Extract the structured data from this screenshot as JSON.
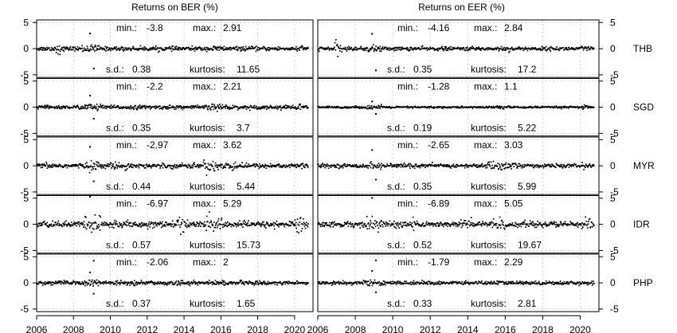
{
  "chart_data": {
    "type": "scatter",
    "columns": [
      "Returns on BER (%)",
      "Returns on EER (%)"
    ],
    "x_ticks": [
      "2006",
      "2008",
      "2010",
      "2012",
      "2014",
      "2016",
      "2018",
      "2020"
    ],
    "xlim": [
      2006,
      2021
    ],
    "ylim": [
      -5.5,
      5.5
    ],
    "y_ticks": [
      "5",
      "0",
      "-5"
    ],
    "grid": true,
    "stat_labels": {
      "min": "min.:",
      "max": "max.:",
      "sd": "s.d.:",
      "kurtosis": "kurtosis:"
    },
    "panels": [
      {
        "currency": "THB",
        "ber": {
          "min": "-3.8",
          "max": "2.91",
          "sd": "0.38",
          "kurtosis": "11.65"
        },
        "eer": {
          "min": "-4.16",
          "max": "2.84",
          "sd": "0.35",
          "kurtosis": "17.2"
        }
      },
      {
        "currency": "SGD",
        "ber": {
          "min": "-2.2",
          "max": "2.21",
          "sd": "0.35",
          "kurtosis": "3.7"
        },
        "eer": {
          "min": "-1.28",
          "max": "1.1",
          "sd": "0.19",
          "kurtosis": "5.22"
        }
      },
      {
        "currency": "MYR",
        "ber": {
          "min": "-2.97",
          "max": "3.62",
          "sd": "0.44",
          "kurtosis": "5.44"
        },
        "eer": {
          "min": "-2.65",
          "max": "3.03",
          "sd": "0.35",
          "kurtosis": "5.99"
        }
      },
      {
        "currency": "IDR",
        "ber": {
          "min": "-6.97",
          "max": "5.29",
          "sd": "0.57",
          "kurtosis": "15.73"
        },
        "eer": {
          "min": "-6.89",
          "max": "5.05",
          "sd": "0.52",
          "kurtosis": "19.67"
        }
      },
      {
        "currency": "PHP",
        "ber": {
          "min": "-2.06",
          "max": "2",
          "sd": "0.37",
          "kurtosis": "1.65"
        },
        "eer": {
          "min": "-1.79",
          "max": "2.29",
          "sd": "0.33",
          "kurtosis": "2.81"
        }
      }
    ]
  }
}
